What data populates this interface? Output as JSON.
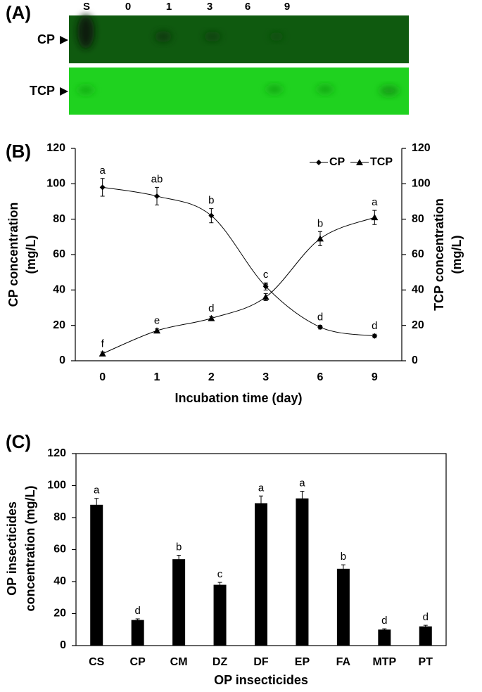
{
  "chart_data": [
    {
      "type": "plate",
      "panel": "(A)",
      "lanes": [
        "S",
        "0",
        "1",
        "3",
        "6",
        "9"
      ],
      "rows": [
        "CP",
        "TCP"
      ]
    },
    {
      "type": "line",
      "panel": "(B)",
      "x_label": "Incubation time (day)",
      "y_label": [
        "CP concentration",
        "(mg/L)"
      ],
      "y2_label": [
        "TCP concentration",
        "(mg/L)"
      ],
      "categories": [
        "0",
        "1",
        "2",
        "3",
        "6",
        "9"
      ],
      "series": [
        {
          "name": "CP",
          "color": "#000000",
          "marker": "diamond",
          "values": [
            98,
            93,
            82,
            42,
            19,
            14
          ],
          "errors": [
            5,
            5,
            4,
            2,
            1,
            1
          ],
          "letters": [
            "a",
            "ab",
            "b",
            "c",
            "d",
            "d"
          ]
        },
        {
          "name": "TCP",
          "color": "#000000",
          "marker": "triangle",
          "axis": "y2",
          "values": [
            4,
            17,
            24,
            36,
            69,
            81
          ],
          "errors": [
            1,
            1,
            1,
            2,
            4,
            4
          ],
          "letters": [
            "f",
            "e",
            "d",
            "c",
            "b",
            "a"
          ]
        }
      ],
      "ylim": [
        0,
        120
      ],
      "yticks": [
        0,
        20,
        40,
        60,
        80,
        100,
        120
      ],
      "y2lim": [
        0,
        120
      ],
      "y2ticks": [
        0,
        20,
        40,
        60,
        80,
        100,
        120
      ],
      "legend": "upper right"
    },
    {
      "type": "bar",
      "panel": "(C)",
      "x_label": "OP insecticides",
      "y_label": [
        "OP insecticides",
        "concentration (mg/L)"
      ],
      "categories": [
        "CS",
        "CP",
        "CM",
        "DZ",
        "DF",
        "EP",
        "FA",
        "MTP",
        "PT"
      ],
      "values": [
        88,
        16,
        54,
        38,
        89,
        92,
        48,
        10,
        12
      ],
      "errors": [
        4,
        0.7,
        2.5,
        1.5,
        4.5,
        4.5,
        2.5,
        0.5,
        0.7
      ],
      "letters": [
        "a",
        "d",
        "b",
        "c",
        "a",
        "a",
        "b",
        "d",
        "d"
      ],
      "color": "#000000",
      "ylim": [
        0,
        120
      ],
      "yticks": [
        0,
        20,
        40,
        60,
        80,
        100,
        120
      ],
      "frame": true
    }
  ]
}
